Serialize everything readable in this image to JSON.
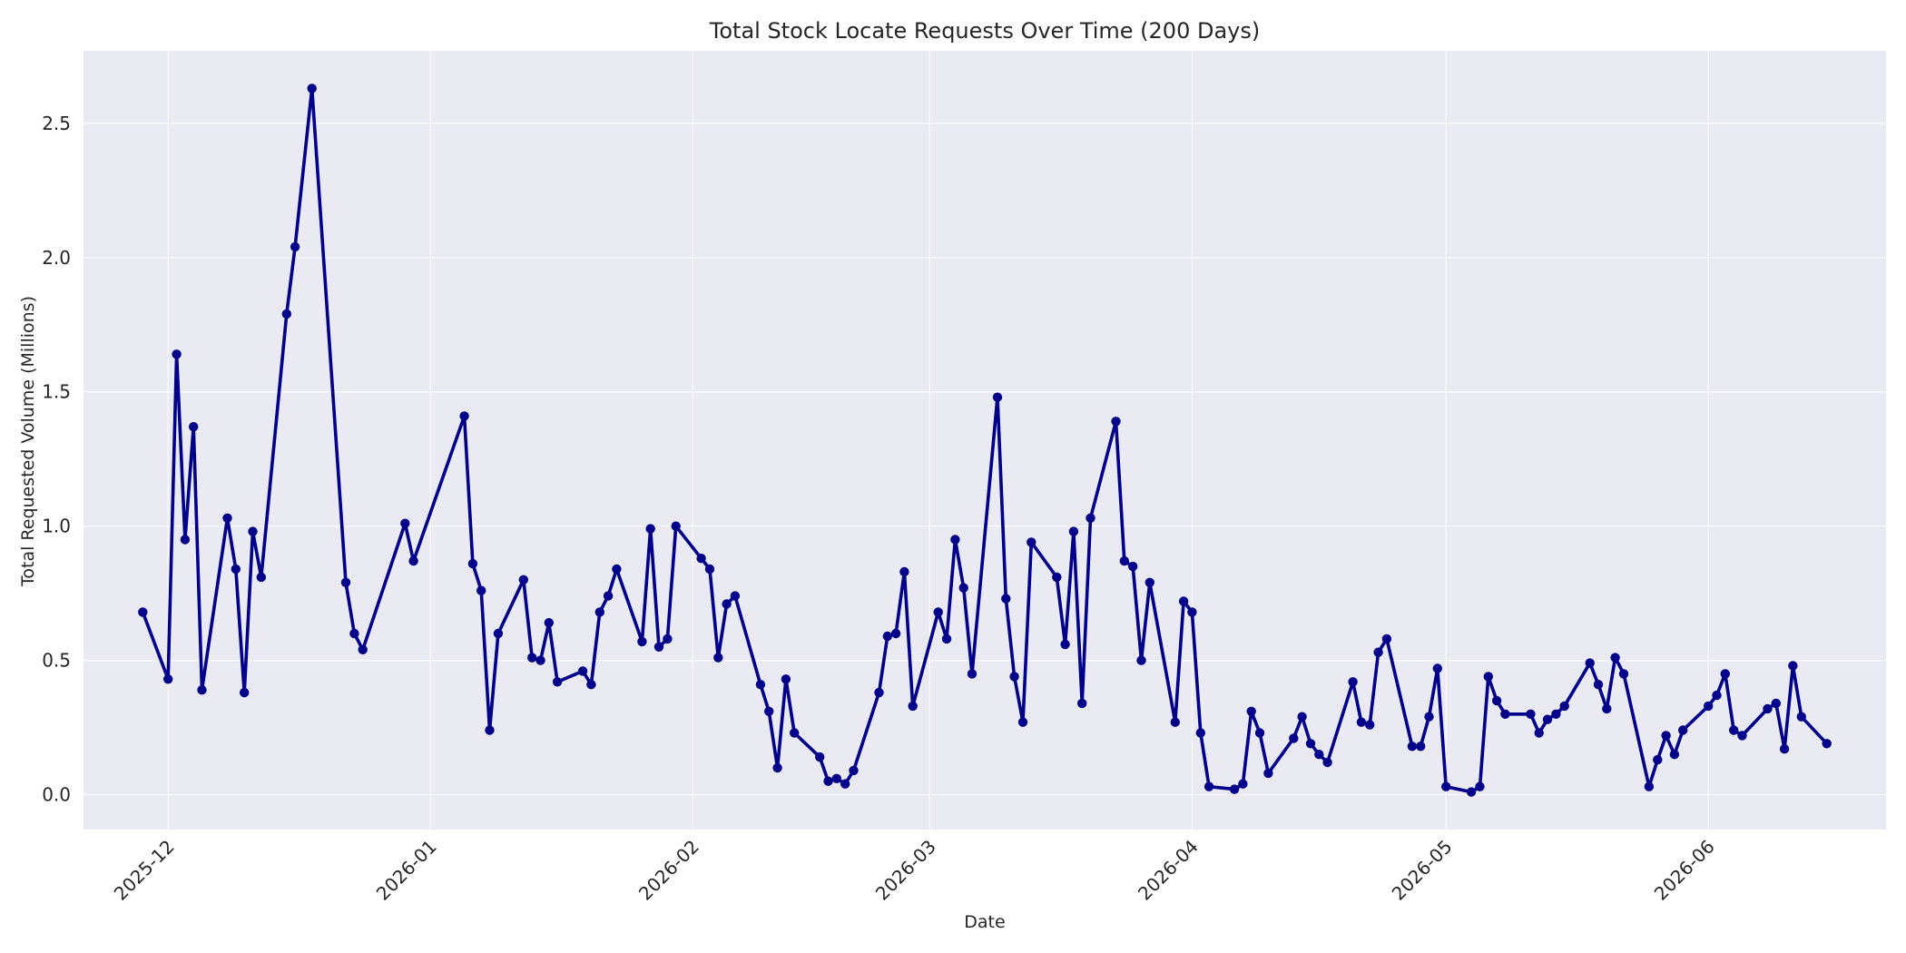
{
  "chart_data": {
    "type": "line",
    "title": "Total Stock Locate Requests Over Time (200 Days)",
    "xlabel": "Date",
    "ylabel": "Total Requested Volume (Millions)",
    "x_range": [
      "2025-11-21",
      "2026-06-22"
    ],
    "ylim": [
      -0.13,
      2.77
    ],
    "yticks": [
      0.0,
      0.5,
      1.0,
      1.5,
      2.0,
      2.5
    ],
    "ytick_labels": [
      "0.0",
      "0.5",
      "1.0",
      "1.5",
      "2.0",
      "2.5"
    ],
    "xticks": [
      "2025-12-01",
      "2026-01-01",
      "2026-02-01",
      "2026-03-01",
      "2026-04-01",
      "2026-05-01",
      "2026-06-01"
    ],
    "xtick_labels": [
      "2025-12",
      "2026-01",
      "2026-02",
      "2026-03",
      "2026-04",
      "2026-05",
      "2026-06"
    ],
    "grid": true,
    "colors": {
      "series": "#00008b",
      "plot_background": "#eaeaf2",
      "grid": "#ffffff",
      "page_background": "#ffffff"
    },
    "series": [
      {
        "x": [
          "2025-11-28",
          "2025-12-01",
          "2025-12-02",
          "2025-12-03",
          "2025-12-04",
          "2025-12-05",
          "2025-12-08",
          "2025-12-09",
          "2025-12-10",
          "2025-12-11",
          "2025-12-12",
          "2025-12-15",
          "2025-12-16",
          "2025-12-18",
          "2025-12-22",
          "2025-12-23",
          "2025-12-24",
          "2025-12-29",
          "2025-12-30",
          "2026-01-05",
          "2026-01-06",
          "2026-01-07",
          "2026-01-08",
          "2026-01-09",
          "2026-01-12",
          "2026-01-13",
          "2026-01-14",
          "2026-01-15",
          "2026-01-16",
          "2026-01-19",
          "2026-01-20",
          "2026-01-21",
          "2026-01-22",
          "2026-01-23",
          "2026-01-26",
          "2026-01-27",
          "2026-01-28",
          "2026-01-29",
          "2026-01-30",
          "2026-02-02",
          "2026-02-03",
          "2026-02-04",
          "2026-02-05",
          "2026-02-06",
          "2026-02-09",
          "2026-02-10",
          "2026-02-11",
          "2026-02-12",
          "2026-02-13",
          "2026-02-16",
          "2026-02-17",
          "2026-02-18",
          "2026-02-19",
          "2026-02-20",
          "2026-02-23",
          "2026-02-24",
          "2026-02-25",
          "2026-02-26",
          "2026-02-27",
          "2026-03-02",
          "2026-03-03",
          "2026-03-04",
          "2026-03-05",
          "2026-03-06",
          "2026-03-09",
          "2026-03-10",
          "2026-03-11",
          "2026-03-12",
          "2026-03-13",
          "2026-03-16",
          "2026-03-17",
          "2026-03-18",
          "2026-03-19",
          "2026-03-20",
          "2026-03-23",
          "2026-03-24",
          "2026-03-25",
          "2026-03-26",
          "2026-03-27",
          "2026-03-30",
          "2026-03-31",
          "2026-04-01",
          "2026-04-02",
          "2026-04-03",
          "2026-04-06",
          "2026-04-07",
          "2026-04-08",
          "2026-04-09",
          "2026-04-10",
          "2026-04-13",
          "2026-04-14",
          "2026-04-15",
          "2026-04-16",
          "2026-04-17",
          "2026-04-20",
          "2026-04-21",
          "2026-04-22",
          "2026-04-23",
          "2026-04-24",
          "2026-04-27",
          "2026-04-28",
          "2026-04-29",
          "2026-04-30",
          "2026-05-01",
          "2026-05-04",
          "2026-05-05",
          "2026-05-06",
          "2026-05-07",
          "2026-05-08",
          "2026-05-11",
          "2026-05-12",
          "2026-05-13",
          "2026-05-14",
          "2026-05-15",
          "2026-05-18",
          "2026-05-19",
          "2026-05-20",
          "2026-05-21",
          "2026-05-22",
          "2026-05-25",
          "2026-05-26",
          "2026-05-27",
          "2026-05-28",
          "2026-05-29",
          "2026-06-01",
          "2026-06-02",
          "2026-06-03",
          "2026-06-04",
          "2026-06-05",
          "2026-06-08",
          "2026-06-09",
          "2026-06-10",
          "2026-06-11",
          "2026-06-12",
          "2026-06-15"
        ],
        "y": [
          0.68,
          0.43,
          1.64,
          0.95,
          1.37,
          0.39,
          1.03,
          0.84,
          0.38,
          0.98,
          0.81,
          1.79,
          2.04,
          2.63,
          0.79,
          0.6,
          0.54,
          1.01,
          0.87,
          1.41,
          0.86,
          0.76,
          0.24,
          0.6,
          0.8,
          0.51,
          0.5,
          0.64,
          0.42,
          0.46,
          0.41,
          0.68,
          0.74,
          0.84,
          0.57,
          0.99,
          0.55,
          0.58,
          1.0,
          0.88,
          0.84,
          0.51,
          0.71,
          0.74,
          0.41,
          0.31,
          0.1,
          0.43,
          0.23,
          0.14,
          0.05,
          0.06,
          0.04,
          0.09,
          0.38,
          0.59,
          0.6,
          0.83,
          0.33,
          0.68,
          0.58,
          0.95,
          0.77,
          0.45,
          1.48,
          0.73,
          0.44,
          0.27,
          0.94,
          0.81,
          0.56,
          0.98,
          0.34,
          1.03,
          1.39,
          0.87,
          0.85,
          0.5,
          0.79,
          0.27,
          0.72,
          0.68,
          0.23,
          0.03,
          0.02,
          0.04,
          0.31,
          0.23,
          0.08,
          0.21,
          0.29,
          0.19,
          0.15,
          0.12,
          0.42,
          0.27,
          0.26,
          0.53,
          0.58,
          0.18,
          0.18,
          0.29,
          0.47,
          0.03,
          0.01,
          0.03,
          0.44,
          0.35,
          0.3,
          0.3,
          0.23,
          0.28,
          0.3,
          0.33,
          0.49,
          0.41,
          0.32,
          0.51,
          0.45,
          0.03,
          0.13,
          0.22,
          0.15,
          0.24,
          0.33,
          0.37,
          0.45,
          0.24,
          0.22,
          0.32,
          0.34,
          0.17,
          0.48,
          0.29,
          0.19
        ]
      }
    ]
  }
}
